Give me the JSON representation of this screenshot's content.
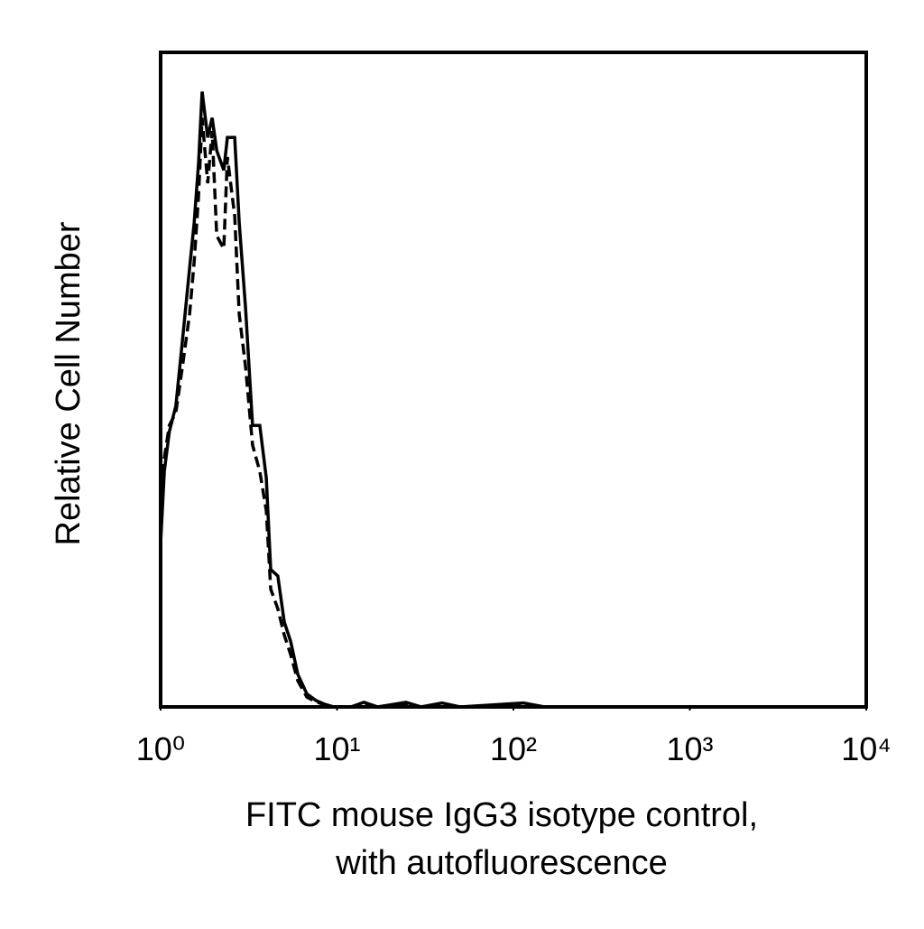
{
  "chart_data": {
    "type": "line",
    "ylabel": "Relative Cell Number",
    "xlabel": [
      "FITC mouse IgG3 isotype control,",
      "with autofluorescence"
    ],
    "xscale": "log",
    "xlim": [
      1,
      10000
    ],
    "xticks": [
      {
        "value": 1,
        "label": "10⁰"
      },
      {
        "value": 10,
        "label": "10¹"
      },
      {
        "value": 100,
        "label": "10²"
      },
      {
        "value": 1000,
        "label": "10³"
      },
      {
        "value": 10000,
        "label": "10⁴"
      }
    ],
    "ylim": [
      0,
      100
    ],
    "x": [
      1,
      1.05,
      1.12,
      1.22,
      1.33,
      1.46,
      1.55,
      1.64,
      1.72,
      1.85,
      1.96,
      2.08,
      2.28,
      2.39,
      2.63,
      2.79,
      3.03,
      3.32,
      3.65,
      3.97,
      4.21,
      4.62,
      5.02,
      5.46,
      5.99,
      6.74,
      7.58,
      8.53,
      9.6,
      12,
      14.2,
      17,
      24.6,
      30,
      39.4,
      50,
      114,
      150,
      10000
    ],
    "series": [
      {
        "color": "#000000",
        "style": "solid",
        "values": [
          25,
          36,
          42,
          46,
          56,
          67,
          74,
          83,
          94,
          87,
          90,
          85,
          82,
          87,
          87,
          74,
          61,
          43,
          43,
          35,
          21,
          20,
          13,
          10,
          5,
          2,
          1,
          0.4,
          0,
          0,
          0.7,
          0,
          0.7,
          0,
          0.6,
          0,
          0.6,
          0,
          0
        ]
      },
      {
        "color": "#000000",
        "style": "dashed",
        "values": [
          28,
          38,
          43,
          45,
          52,
          60,
          68,
          78,
          90,
          80,
          88,
          72,
          70,
          84,
          75,
          60,
          52,
          40,
          36,
          30,
          18,
          15,
          11,
          8,
          4,
          1.5,
          0.8,
          0.3,
          0,
          0,
          0.5,
          0,
          0.5,
          0,
          0.4,
          0,
          0.4,
          0,
          0
        ]
      }
    ]
  }
}
